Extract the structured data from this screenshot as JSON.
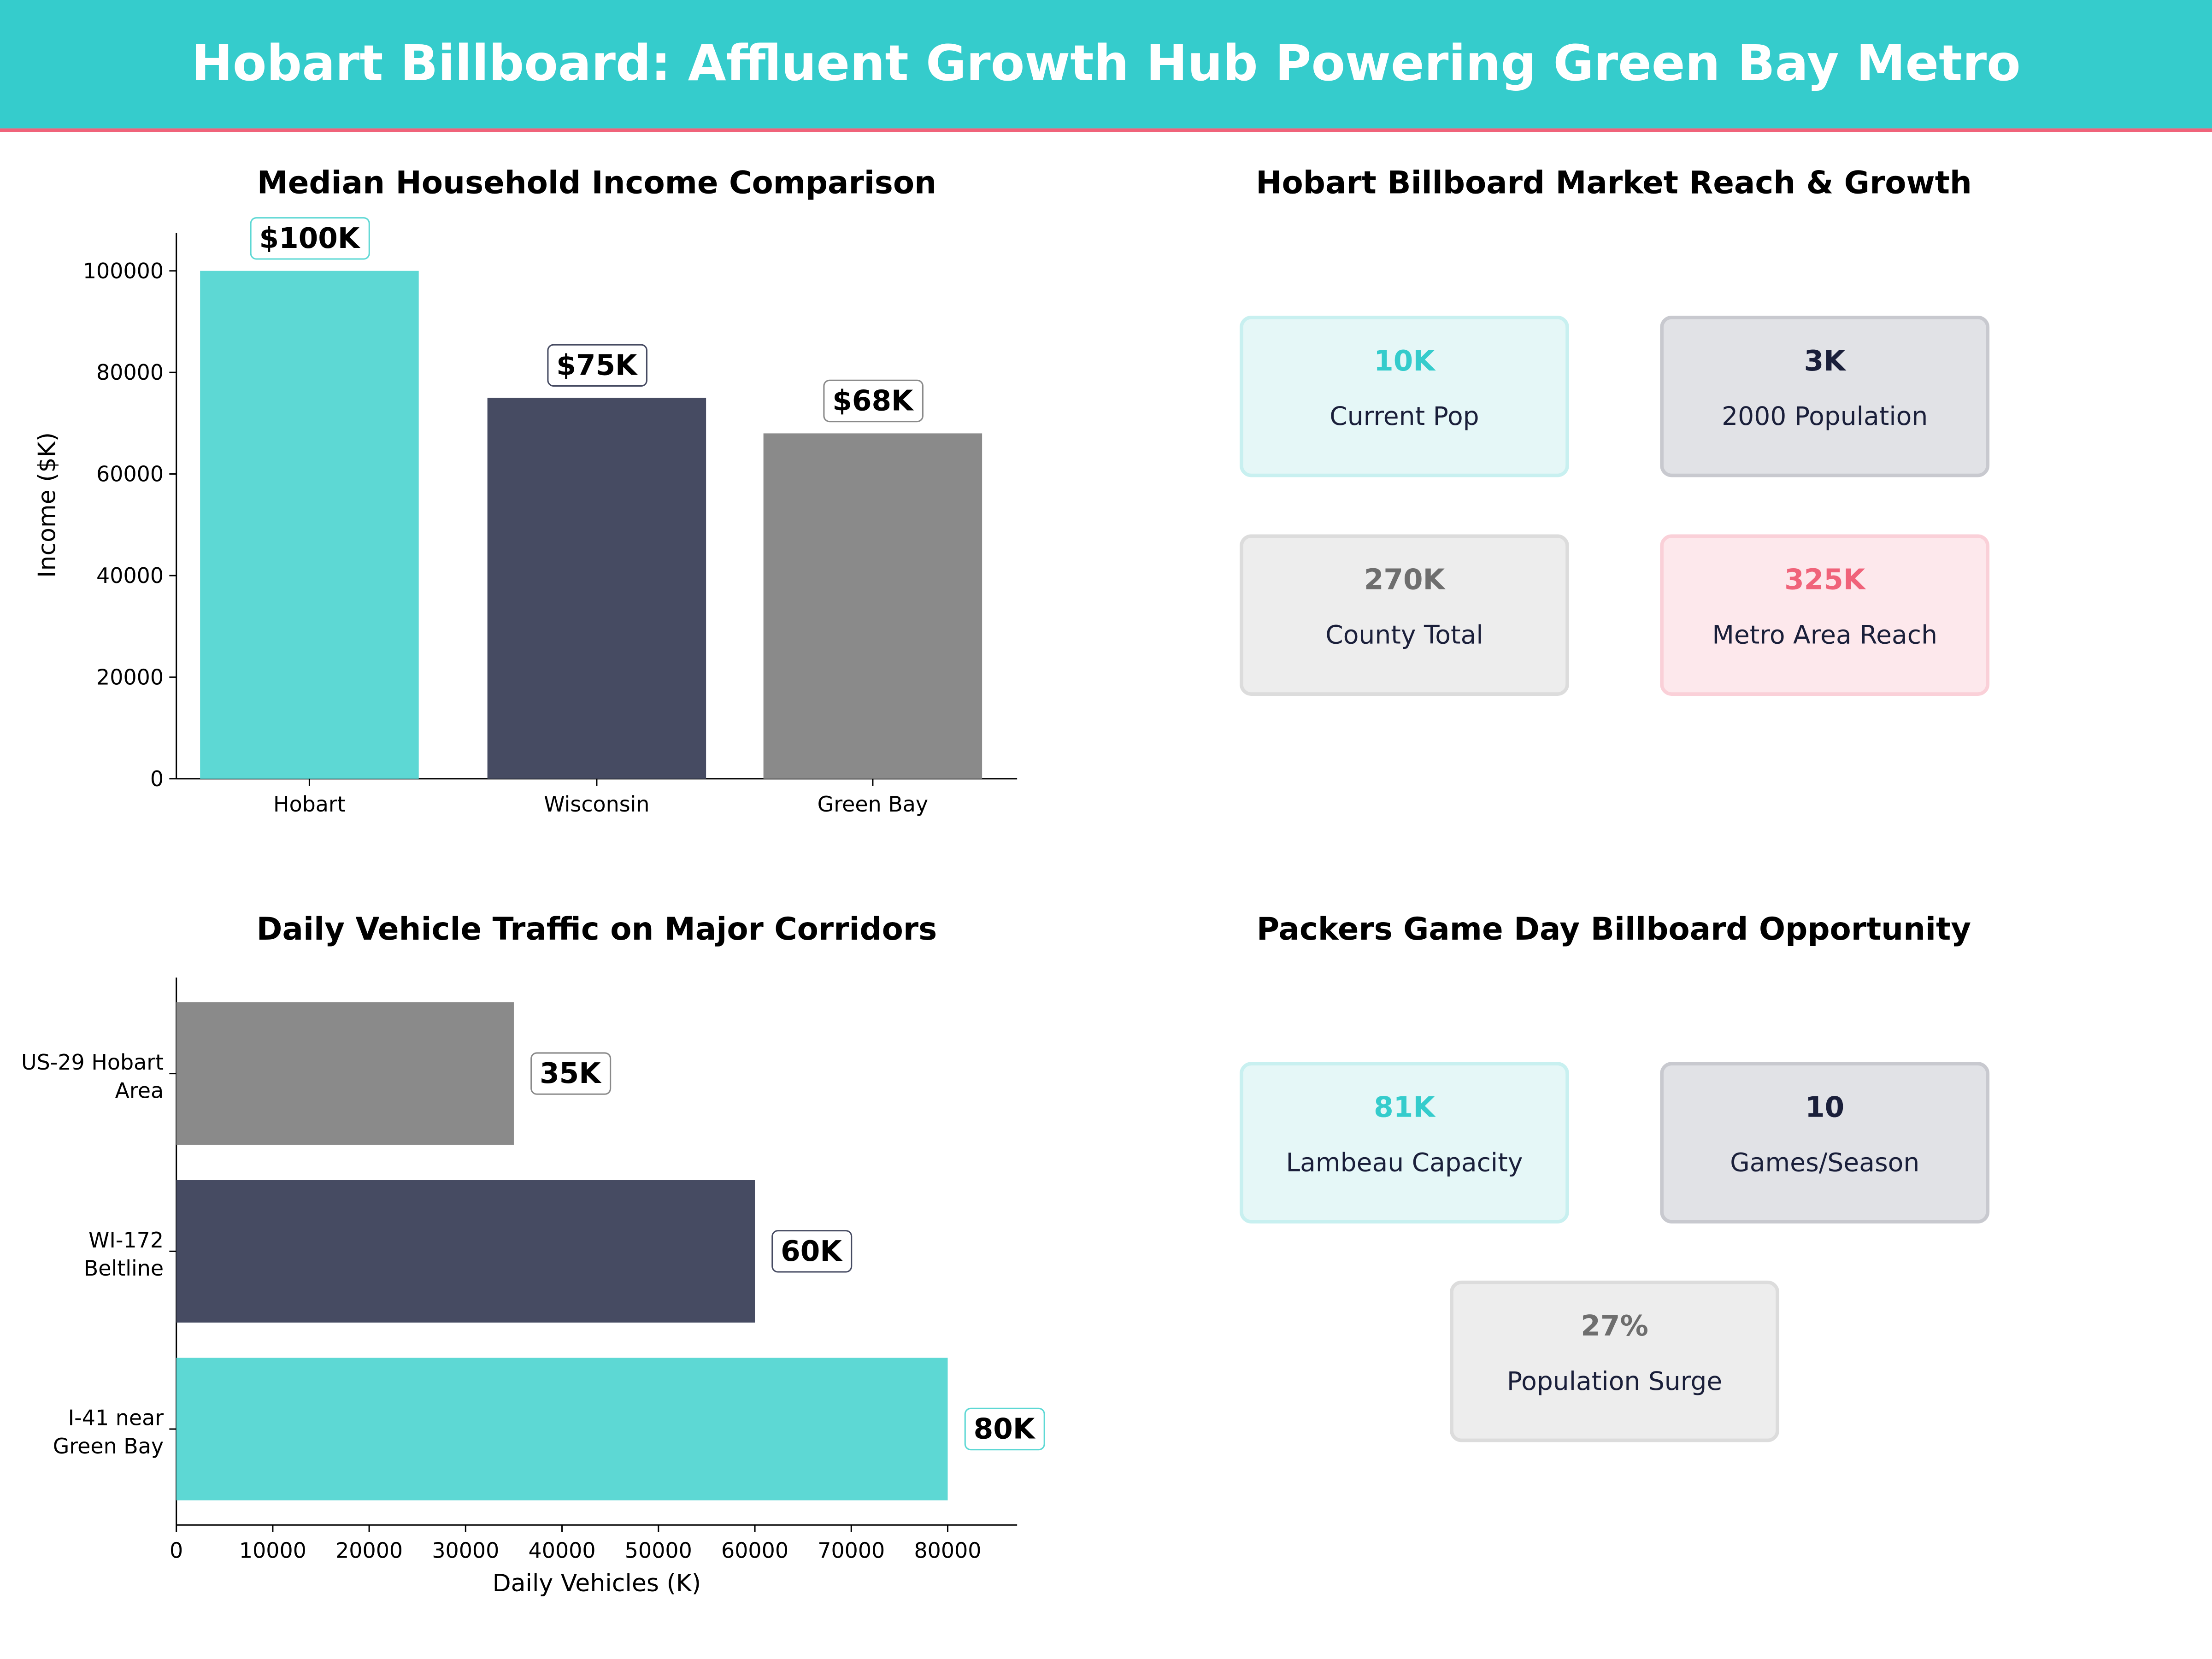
{
  "header": {
    "title": "Hobart Billboard: Affluent Growth Hub Powering Green Bay Metro",
    "bg": "#35CCCC",
    "accent": "#F0637A"
  },
  "chart_data": [
    {
      "type": "bar",
      "title": "Median Household Income Comparison",
      "xlabel": "",
      "ylabel": "Income ($K)",
      "categories": [
        "Hobart",
        "Wisconsin",
        "Green Bay"
      ],
      "values": [
        100000,
        75000,
        68000
      ],
      "data_labels": [
        "$100K",
        "$75K",
        "$68K"
      ],
      "colors": [
        "#5DD8D4",
        "#464B62",
        "#8A8A8A"
      ],
      "yticks": [
        "0",
        "20000",
        "40000",
        "60000",
        "80000",
        "100000"
      ],
      "ylim": [
        0,
        107500
      ],
      "grid": false
    },
    {
      "type": "bar",
      "orientation": "horizontal",
      "title": "Daily Vehicle Traffic on Major Corridors",
      "xlabel": "Daily Vehicles (K)",
      "ylabel": "",
      "categories": [
        [
          "US-29 Hobart",
          "Area"
        ],
        [
          "WI-172",
          "Beltline"
        ],
        [
          "I-41 near",
          "Green Bay"
        ]
      ],
      "values": [
        35000,
        60000,
        80000
      ],
      "data_labels": [
        "35K",
        "60K",
        "80K"
      ],
      "colors": [
        "#8A8A8A",
        "#464B62",
        "#5DD8D4"
      ],
      "xticks": [
        "0",
        "10000",
        "20000",
        "30000",
        "40000",
        "50000",
        "60000",
        "70000",
        "80000"
      ],
      "xlim": [
        0,
        87200
      ],
      "grid": false
    }
  ],
  "market_reach": {
    "title": "Hobart Billboard Market Reach & Growth",
    "cards": [
      {
        "value": "10K",
        "label": "Current Pop",
        "color": "#35CCCC",
        "bg": "#E5F7F7",
        "border": "#C8F0F0"
      },
      {
        "value": "3K",
        "label": "2000 Population",
        "color": "#1A1F3A",
        "bg": "#E1E2E6",
        "border": "#C8C9CF"
      },
      {
        "value": "270K",
        "label": "County Total",
        "color": "#6E6E6E",
        "bg": "#EDEDED",
        "border": "#DCDCDC"
      },
      {
        "value": "325K",
        "label": "Metro Area Reach",
        "color": "#F0637A",
        "bg": "#FDE8EC",
        "border": "#FAD0D8"
      }
    ]
  },
  "game_day": {
    "title": "Packers Game Day Billboard Opportunity",
    "cards": [
      {
        "value": "81K",
        "label": "Lambeau Capacity",
        "color": "#35CCCC",
        "bg": "#E5F7F7",
        "border": "#C8F0F0"
      },
      {
        "value": "10",
        "label": "Games/Season",
        "color": "#1A1F3A",
        "bg": "#E1E2E6",
        "border": "#C8C9CF"
      },
      {
        "value": "27%",
        "label": "Population Surge",
        "color": "#6E6E6E",
        "bg": "#EDEDED",
        "border": "#DCDCDC"
      }
    ]
  }
}
